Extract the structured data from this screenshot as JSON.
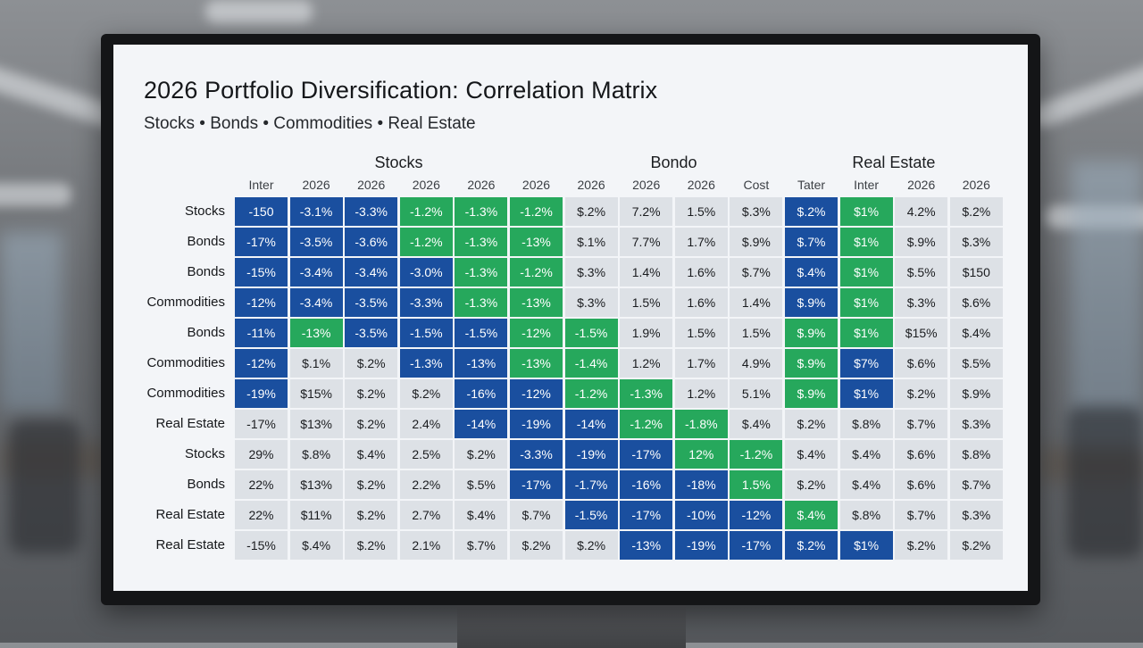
{
  "chart_data": {
    "type": "heatmap",
    "title": "2026 Portfolio Diversification: Correlation Matrix",
    "subtitle": "Stocks • Bonds • Commodities • Real Estate",
    "column_groups": [
      {
        "name": "Stocks",
        "span": 6
      },
      {
        "name": "Bondo",
        "span": 4
      },
      {
        "name": "Real Estate",
        "span": 4
      }
    ],
    "columns": [
      "Inter",
      "2026",
      "2026",
      "2026",
      "2026",
      "2026",
      "2026",
      "2026",
      "2026",
      "Cost",
      "Tater",
      "Inter",
      "2026",
      "2026"
    ],
    "rows": [
      {
        "label": "Stocks",
        "cells": [
          {
            "v": "-150",
            "c": "blue"
          },
          {
            "v": "-3.1%",
            "c": "blue"
          },
          {
            "v": "-3.3%",
            "c": "blue"
          },
          {
            "v": "-1.2%",
            "c": "green"
          },
          {
            "v": "-1.3%",
            "c": "green"
          },
          {
            "v": "-1.2%",
            "c": "green"
          },
          {
            "v": "$.2%",
            "c": "gray"
          },
          {
            "v": "7.2%",
            "c": "gray"
          },
          {
            "v": "1.5%",
            "c": "gray"
          },
          {
            "v": "$.3%",
            "c": "gray"
          },
          {
            "v": "$.2%",
            "c": "blue"
          },
          {
            "v": "$1%",
            "c": "green"
          },
          {
            "v": "4.2%",
            "c": "gray"
          },
          {
            "v": "$.2%",
            "c": "gray"
          }
        ]
      },
      {
        "label": "Bonds",
        "cells": [
          {
            "v": "-17%",
            "c": "blue"
          },
          {
            "v": "-3.5%",
            "c": "blue"
          },
          {
            "v": "-3.6%",
            "c": "blue"
          },
          {
            "v": "-1.2%",
            "c": "green"
          },
          {
            "v": "-1.3%",
            "c": "green"
          },
          {
            "v": "-13%",
            "c": "green"
          },
          {
            "v": "$.1%",
            "c": "gray"
          },
          {
            "v": "7.7%",
            "c": "gray"
          },
          {
            "v": "1.7%",
            "c": "gray"
          },
          {
            "v": "$.9%",
            "c": "gray"
          },
          {
            "v": "$.7%",
            "c": "blue"
          },
          {
            "v": "$1%",
            "c": "green"
          },
          {
            "v": "$.9%",
            "c": "gray"
          },
          {
            "v": "$.3%",
            "c": "gray"
          }
        ]
      },
      {
        "label": "Bonds",
        "cells": [
          {
            "v": "-15%",
            "c": "blue"
          },
          {
            "v": "-3.4%",
            "c": "blue"
          },
          {
            "v": "-3.4%",
            "c": "blue"
          },
          {
            "v": "-3.0%",
            "c": "blue"
          },
          {
            "v": "-1.3%",
            "c": "green"
          },
          {
            "v": "-1.2%",
            "c": "green"
          },
          {
            "v": "$.3%",
            "c": "gray"
          },
          {
            "v": "1.4%",
            "c": "gray"
          },
          {
            "v": "1.6%",
            "c": "gray"
          },
          {
            "v": "$.7%",
            "c": "gray"
          },
          {
            "v": "$.4%",
            "c": "blue"
          },
          {
            "v": "$1%",
            "c": "green"
          },
          {
            "v": "$.5%",
            "c": "gray"
          },
          {
            "v": "$150",
            "c": "gray"
          }
        ]
      },
      {
        "label": "Commodities",
        "cells": [
          {
            "v": "-12%",
            "c": "blue"
          },
          {
            "v": "-3.4%",
            "c": "blue"
          },
          {
            "v": "-3.5%",
            "c": "blue"
          },
          {
            "v": "-3.3%",
            "c": "blue"
          },
          {
            "v": "-1.3%",
            "c": "green"
          },
          {
            "v": "-13%",
            "c": "green"
          },
          {
            "v": "$.3%",
            "c": "gray"
          },
          {
            "v": "1.5%",
            "c": "gray"
          },
          {
            "v": "1.6%",
            "c": "gray"
          },
          {
            "v": "1.4%",
            "c": "gray"
          },
          {
            "v": "$.9%",
            "c": "blue"
          },
          {
            "v": "$1%",
            "c": "green"
          },
          {
            "v": "$.3%",
            "c": "gray"
          },
          {
            "v": "$.6%",
            "c": "gray"
          }
        ]
      },
      {
        "label": "Bonds",
        "cells": [
          {
            "v": "-11%",
            "c": "blue"
          },
          {
            "v": "-13%",
            "c": "green"
          },
          {
            "v": "-3.5%",
            "c": "blue"
          },
          {
            "v": "-1.5%",
            "c": "blue"
          },
          {
            "v": "-1.5%",
            "c": "blue"
          },
          {
            "v": "-12%",
            "c": "green"
          },
          {
            "v": "-1.5%",
            "c": "green"
          },
          {
            "v": "1.9%",
            "c": "gray"
          },
          {
            "v": "1.5%",
            "c": "gray"
          },
          {
            "v": "1.5%",
            "c": "gray"
          },
          {
            "v": "$.9%",
            "c": "green"
          },
          {
            "v": "$1%",
            "c": "green"
          },
          {
            "v": "$15%",
            "c": "gray"
          },
          {
            "v": "$.4%",
            "c": "gray"
          }
        ]
      },
      {
        "label": "Commodities",
        "cells": [
          {
            "v": "-12%",
            "c": "blue"
          },
          {
            "v": "$.1%",
            "c": "gray"
          },
          {
            "v": "$.2%",
            "c": "gray"
          },
          {
            "v": "-1.3%",
            "c": "blue"
          },
          {
            "v": "-13%",
            "c": "blue"
          },
          {
            "v": "-13%",
            "c": "green"
          },
          {
            "v": "-1.4%",
            "c": "green"
          },
          {
            "v": "1.2%",
            "c": "gray"
          },
          {
            "v": "1.7%",
            "c": "gray"
          },
          {
            "v": "4.9%",
            "c": "gray"
          },
          {
            "v": "$.9%",
            "c": "green"
          },
          {
            "v": "$7%",
            "c": "blue"
          },
          {
            "v": "$.6%",
            "c": "gray"
          },
          {
            "v": "$.5%",
            "c": "gray"
          }
        ]
      },
      {
        "label": "Commodities",
        "cells": [
          {
            "v": "-19%",
            "c": "blue"
          },
          {
            "v": "$15%",
            "c": "gray"
          },
          {
            "v": "$.2%",
            "c": "gray"
          },
          {
            "v": "$.2%",
            "c": "gray"
          },
          {
            "v": "-16%",
            "c": "blue"
          },
          {
            "v": "-12%",
            "c": "blue"
          },
          {
            "v": "-1.2%",
            "c": "green"
          },
          {
            "v": "-1.3%",
            "c": "green"
          },
          {
            "v": "1.2%",
            "c": "gray"
          },
          {
            "v": "5.1%",
            "c": "gray"
          },
          {
            "v": "$.9%",
            "c": "green"
          },
          {
            "v": "$1%",
            "c": "blue"
          },
          {
            "v": "$.2%",
            "c": "gray"
          },
          {
            "v": "$.9%",
            "c": "gray"
          }
        ]
      },
      {
        "label": "Real Estate",
        "cells": [
          {
            "v": "-17%",
            "c": "gray"
          },
          {
            "v": "$13%",
            "c": "gray"
          },
          {
            "v": "$.2%",
            "c": "gray"
          },
          {
            "v": "2.4%",
            "c": "gray"
          },
          {
            "v": "-14%",
            "c": "blue"
          },
          {
            "v": "-19%",
            "c": "blue"
          },
          {
            "v": "-14%",
            "c": "blue"
          },
          {
            "v": "-1.2%",
            "c": "green"
          },
          {
            "v": "-1.8%",
            "c": "green"
          },
          {
            "v": "$.4%",
            "c": "gray"
          },
          {
            "v": "$.2%",
            "c": "gray"
          },
          {
            "v": "$.8%",
            "c": "gray"
          },
          {
            "v": "$.7%",
            "c": "gray"
          },
          {
            "v": "$.3%",
            "c": "gray"
          }
        ]
      },
      {
        "label": "Stocks",
        "cells": [
          {
            "v": "29%",
            "c": "gray"
          },
          {
            "v": "$.8%",
            "c": "gray"
          },
          {
            "v": "$.4%",
            "c": "gray"
          },
          {
            "v": "2.5%",
            "c": "gray"
          },
          {
            "v": "$.2%",
            "c": "gray"
          },
          {
            "v": "-3.3%",
            "c": "blue"
          },
          {
            "v": "-19%",
            "c": "blue"
          },
          {
            "v": "-17%",
            "c": "blue"
          },
          {
            "v": "12%",
            "c": "green"
          },
          {
            "v": "-1.2%",
            "c": "green"
          },
          {
            "v": "$.4%",
            "c": "gray"
          },
          {
            "v": "$.4%",
            "c": "gray"
          },
          {
            "v": "$.6%",
            "c": "gray"
          },
          {
            "v": "$.8%",
            "c": "gray"
          }
        ]
      },
      {
        "label": "Bonds",
        "cells": [
          {
            "v": "22%",
            "c": "gray"
          },
          {
            "v": "$13%",
            "c": "gray"
          },
          {
            "v": "$.2%",
            "c": "gray"
          },
          {
            "v": "2.2%",
            "c": "gray"
          },
          {
            "v": "$.5%",
            "c": "gray"
          },
          {
            "v": "-17%",
            "c": "blue"
          },
          {
            "v": "-1.7%",
            "c": "blue"
          },
          {
            "v": "-16%",
            "c": "blue"
          },
          {
            "v": "-18%",
            "c": "blue"
          },
          {
            "v": "1.5%",
            "c": "green"
          },
          {
            "v": "$.2%",
            "c": "gray"
          },
          {
            "v": "$.4%",
            "c": "gray"
          },
          {
            "v": "$.6%",
            "c": "gray"
          },
          {
            "v": "$.7%",
            "c": "gray"
          }
        ]
      },
      {
        "label": "Real Estate",
        "cells": [
          {
            "v": "22%",
            "c": "gray"
          },
          {
            "v": "$11%",
            "c": "gray"
          },
          {
            "v": "$.2%",
            "c": "gray"
          },
          {
            "v": "2.7%",
            "c": "gray"
          },
          {
            "v": "$.4%",
            "c": "gray"
          },
          {
            "v": "$.7%",
            "c": "gray"
          },
          {
            "v": "-1.5%",
            "c": "blue"
          },
          {
            "v": "-17%",
            "c": "blue"
          },
          {
            "v": "-10%",
            "c": "blue"
          },
          {
            "v": "-12%",
            "c": "blue"
          },
          {
            "v": "$.4%",
            "c": "green"
          },
          {
            "v": "$.8%",
            "c": "gray"
          },
          {
            "v": "$.7%",
            "c": "gray"
          },
          {
            "v": "$.3%",
            "c": "gray"
          }
        ]
      },
      {
        "label": "Real Estate",
        "cells": [
          {
            "v": "-15%",
            "c": "gray"
          },
          {
            "v": "$.4%",
            "c": "gray"
          },
          {
            "v": "$.2%",
            "c": "gray"
          },
          {
            "v": "2.1%",
            "c": "gray"
          },
          {
            "v": "$.7%",
            "c": "gray"
          },
          {
            "v": "$.2%",
            "c": "gray"
          },
          {
            "v": "$.2%",
            "c": "gray"
          },
          {
            "v": "-13%",
            "c": "blue"
          },
          {
            "v": "-19%",
            "c": "blue"
          },
          {
            "v": "-17%",
            "c": "blue"
          },
          {
            "v": "$.2%",
            "c": "blue"
          },
          {
            "v": "$1%",
            "c": "blue"
          },
          {
            "v": "$.2%",
            "c": "gray"
          },
          {
            "v": "$.2%",
            "c": "gray"
          }
        ]
      }
    ],
    "colors": {
      "blue": "#1a4f9f",
      "green": "#26a85c",
      "gray": "#dde1e6"
    },
    "legend": "none",
    "grid": true
  }
}
